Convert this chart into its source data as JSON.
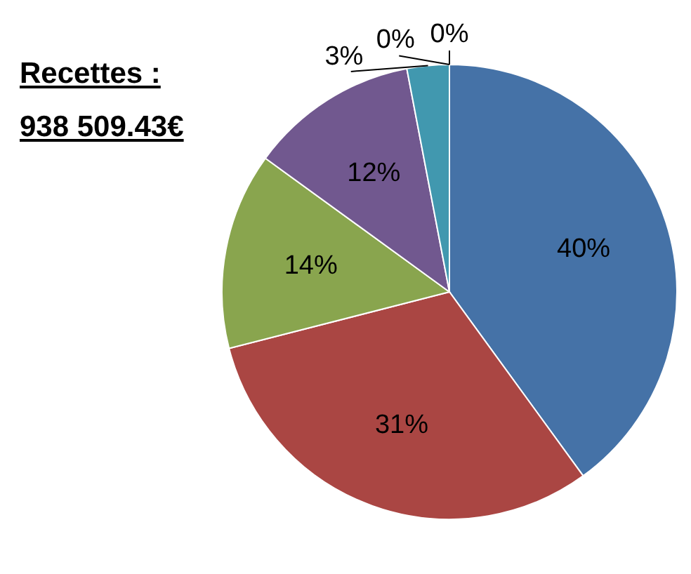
{
  "chart_data": {
    "type": "pie",
    "title": "Recettes : 938 509.43€",
    "categories": [
      null,
      null,
      null,
      null,
      null,
      null,
      null
    ],
    "values": [
      40,
      31,
      14,
      12,
      3,
      0,
      0
    ],
    "colors": [
      "#4572a7",
      "#aa4643",
      "#89a54e",
      "#71588f",
      "#4198af",
      "#db843d",
      "#93a9cf"
    ],
    "value_labels": [
      "40%",
      "31%",
      "14%",
      "12%",
      "3%",
      "0%",
      "0%"
    ]
  }
}
